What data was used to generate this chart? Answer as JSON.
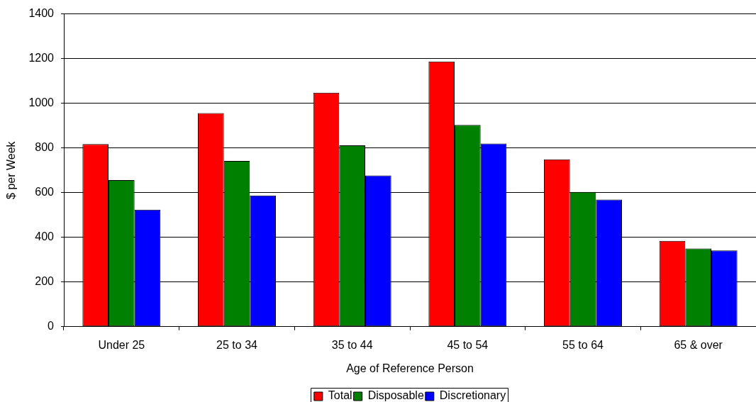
{
  "chart_data": {
    "type": "bar",
    "xlabel": "Age of Reference Person",
    "ylabel": "$ per Week",
    "categories": [
      "Under 25",
      "25 to 34",
      "35 to 44",
      "45 to 54",
      "55 to 64",
      "65 & over"
    ],
    "series": [
      {
        "name": "Total",
        "color": "#ff0000",
        "values": [
          817,
          956,
          1047,
          1187,
          749,
          384
        ]
      },
      {
        "name": "Disposable",
        "color": "#008000",
        "values": [
          656,
          742,
          812,
          903,
          603,
          350
        ]
      },
      {
        "name": "Discretionary",
        "color": "#0000ff",
        "values": [
          524,
          587,
          677,
          820,
          569,
          341
        ]
      }
    ],
    "ylim": [
      0,
      1400
    ],
    "yticks": [
      0,
      200,
      400,
      600,
      800,
      1000,
      1200,
      1400
    ],
    "grid": "y",
    "legend": "bottom"
  }
}
